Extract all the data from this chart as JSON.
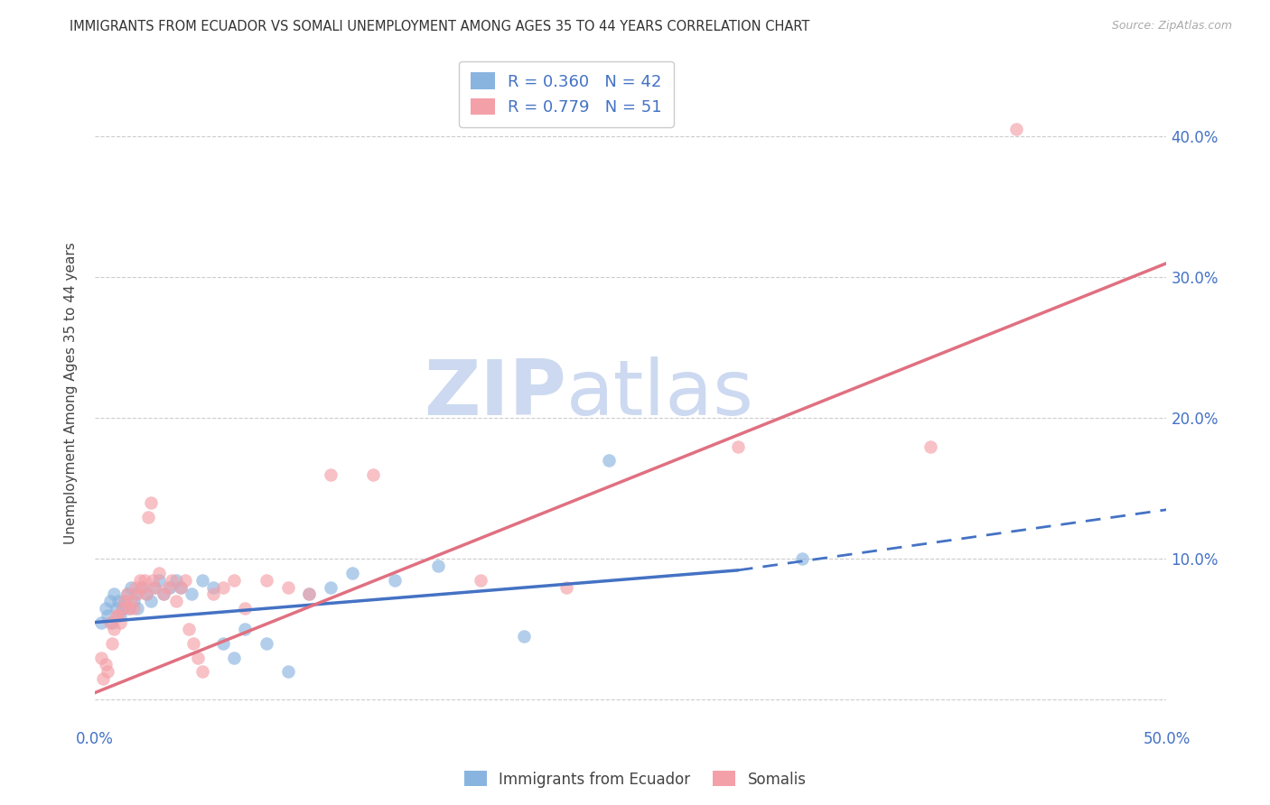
{
  "title": "IMMIGRANTS FROM ECUADOR VS SOMALI UNEMPLOYMENT AMONG AGES 35 TO 44 YEARS CORRELATION CHART",
  "source": "Source: ZipAtlas.com",
  "ylabel": "Unemployment Among Ages 35 to 44 years",
  "xlim": [
    0.0,
    0.5
  ],
  "ylim": [
    -0.015,
    0.45
  ],
  "xticks": [
    0.0,
    0.1,
    0.2,
    0.3,
    0.4,
    0.5
  ],
  "yticks": [
    0.0,
    0.1,
    0.2,
    0.3,
    0.4
  ],
  "legend_entries": [
    {
      "label": "R = 0.360   N = 42",
      "color": "#8ab4e0"
    },
    {
      "label": "R = 0.779   N = 51",
      "color": "#f4a0a8"
    }
  ],
  "watermark_ZIP": "ZIP",
  "watermark_atlas": "atlas",
  "watermark_color": "#ccd9f0",
  "ecuador_color": "#8ab4e0",
  "somali_color": "#f4a0a8",
  "ecuador_line_color": "#4472c4",
  "somali_line_color": "#e07080",
  "background_color": "#ffffff",
  "tick_label_color": "#4472c4",
  "ecuador_scatter": [
    [
      0.003,
      0.055
    ],
    [
      0.005,
      0.065
    ],
    [
      0.006,
      0.06
    ],
    [
      0.007,
      0.07
    ],
    [
      0.008,
      0.055
    ],
    [
      0.009,
      0.075
    ],
    [
      0.01,
      0.065
    ],
    [
      0.011,
      0.07
    ],
    [
      0.012,
      0.06
    ],
    [
      0.013,
      0.065
    ],
    [
      0.014,
      0.07
    ],
    [
      0.015,
      0.075
    ],
    [
      0.016,
      0.065
    ],
    [
      0.017,
      0.08
    ],
    [
      0.018,
      0.07
    ],
    [
      0.019,
      0.075
    ],
    [
      0.02,
      0.065
    ],
    [
      0.022,
      0.08
    ],
    [
      0.024,
      0.075
    ],
    [
      0.026,
      0.07
    ],
    [
      0.028,
      0.08
    ],
    [
      0.03,
      0.085
    ],
    [
      0.032,
      0.075
    ],
    [
      0.035,
      0.08
    ],
    [
      0.038,
      0.085
    ],
    [
      0.04,
      0.08
    ],
    [
      0.045,
      0.075
    ],
    [
      0.05,
      0.085
    ],
    [
      0.055,
      0.08
    ],
    [
      0.06,
      0.04
    ],
    [
      0.065,
      0.03
    ],
    [
      0.07,
      0.05
    ],
    [
      0.08,
      0.04
    ],
    [
      0.09,
      0.02
    ],
    [
      0.1,
      0.075
    ],
    [
      0.11,
      0.08
    ],
    [
      0.12,
      0.09
    ],
    [
      0.14,
      0.085
    ],
    [
      0.16,
      0.095
    ],
    [
      0.2,
      0.045
    ],
    [
      0.24,
      0.17
    ],
    [
      0.33,
      0.1
    ]
  ],
  "somali_scatter": [
    [
      0.003,
      0.03
    ],
    [
      0.004,
      0.015
    ],
    [
      0.005,
      0.025
    ],
    [
      0.006,
      0.02
    ],
    [
      0.007,
      0.055
    ],
    [
      0.008,
      0.04
    ],
    [
      0.009,
      0.05
    ],
    [
      0.01,
      0.06
    ],
    [
      0.011,
      0.06
    ],
    [
      0.012,
      0.055
    ],
    [
      0.013,
      0.065
    ],
    [
      0.014,
      0.07
    ],
    [
      0.015,
      0.075
    ],
    [
      0.016,
      0.065
    ],
    [
      0.017,
      0.07
    ],
    [
      0.018,
      0.065
    ],
    [
      0.019,
      0.08
    ],
    [
      0.02,
      0.075
    ],
    [
      0.021,
      0.085
    ],
    [
      0.022,
      0.08
    ],
    [
      0.023,
      0.085
    ],
    [
      0.024,
      0.075
    ],
    [
      0.025,
      0.13
    ],
    [
      0.026,
      0.14
    ],
    [
      0.027,
      0.085
    ],
    [
      0.028,
      0.08
    ],
    [
      0.03,
      0.09
    ],
    [
      0.032,
      0.075
    ],
    [
      0.034,
      0.08
    ],
    [
      0.036,
      0.085
    ],
    [
      0.038,
      0.07
    ],
    [
      0.04,
      0.08
    ],
    [
      0.042,
      0.085
    ],
    [
      0.044,
      0.05
    ],
    [
      0.046,
      0.04
    ],
    [
      0.048,
      0.03
    ],
    [
      0.05,
      0.02
    ],
    [
      0.055,
      0.075
    ],
    [
      0.06,
      0.08
    ],
    [
      0.065,
      0.085
    ],
    [
      0.07,
      0.065
    ],
    [
      0.08,
      0.085
    ],
    [
      0.09,
      0.08
    ],
    [
      0.1,
      0.075
    ],
    [
      0.11,
      0.16
    ],
    [
      0.13,
      0.16
    ],
    [
      0.18,
      0.085
    ],
    [
      0.22,
      0.08
    ],
    [
      0.3,
      0.18
    ],
    [
      0.39,
      0.18
    ],
    [
      0.43,
      0.405
    ]
  ],
  "ecuador_trend_solid": {
    "x_start": 0.0,
    "y_start": 0.055,
    "x_end": 0.3,
    "y_end": 0.092
  },
  "ecuador_trend_dashed": {
    "x_start": 0.3,
    "y_start": 0.092,
    "x_end": 0.5,
    "y_end": 0.135
  },
  "somali_trend": {
    "x_start": 0.0,
    "y_start": 0.005,
    "x_end": 0.5,
    "y_end": 0.31
  },
  "bottom_legend": [
    "Immigrants from Ecuador",
    "Somalis"
  ]
}
